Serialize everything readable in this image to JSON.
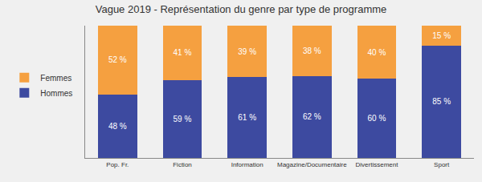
{
  "chart_data": {
    "type": "bar",
    "title": "Vague 2019 - Représentation du genre par type de programme",
    "categories": [
      "Pop. Fr.",
      "Fiction",
      "Information",
      "Magazine/Documentaire",
      "Divertissement",
      "Sport"
    ],
    "series": [
      {
        "name": "Hommes",
        "color": "#3d4aa0",
        "values": [
          48,
          59,
          61,
          62,
          60,
          85
        ],
        "value_labels": [
          "48 %",
          "59 %",
          "61 %",
          "62 %",
          "60 %",
          "85 %"
        ]
      },
      {
        "name": "Femmes",
        "color": "#f5a040",
        "values": [
          52,
          41,
          39,
          38,
          40,
          15
        ],
        "value_labels": [
          "52 %",
          "41 %",
          "39 %",
          "38 %",
          "40 %",
          "15 %"
        ]
      }
    ],
    "stacked": true,
    "ylim": [
      0,
      100
    ],
    "yticks": [],
    "grid": false,
    "legend": "left",
    "data_labels": true,
    "tick_labels": "x"
  }
}
